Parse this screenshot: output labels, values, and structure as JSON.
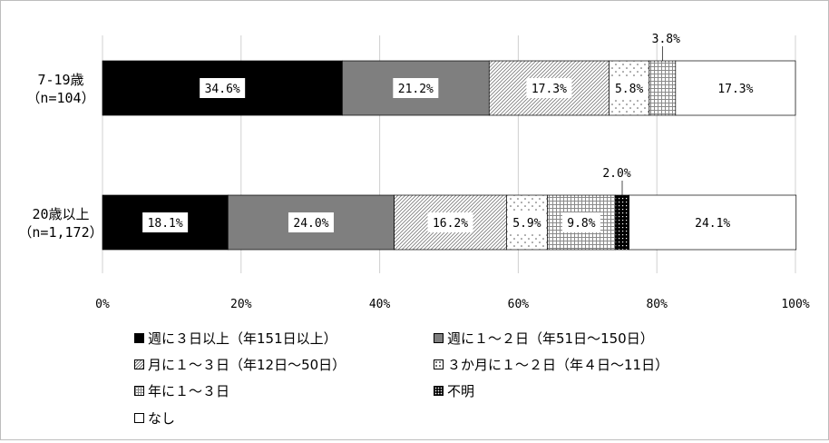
{
  "chart_data": {
    "type": "bar",
    "orientation": "horizontal",
    "stacked": true,
    "xlim": [
      0,
      100
    ],
    "xticks": [
      "0%",
      "20%",
      "40%",
      "60%",
      "80%",
      "100%"
    ],
    "categories": [
      {
        "line1": "7-19歳",
        "line2": "（n=104）"
      },
      {
        "line1": "20歳以上",
        "line2": "（n=1,172）"
      }
    ],
    "series": [
      {
        "name": "週に３日以上（年151日以上）",
        "pattern": "solid-black",
        "values": [
          34.6,
          18.1
        ],
        "labels": [
          "34.6%",
          "18.1%"
        ]
      },
      {
        "name": "週に１～２日（年51日～150日）",
        "pattern": "solid-gray",
        "values": [
          21.2,
          24.0
        ],
        "labels": [
          "21.2%",
          "24.0%"
        ]
      },
      {
        "name": "月に１～３日（年12日～50日）",
        "pattern": "diagonal",
        "values": [
          17.3,
          16.2
        ],
        "labels": [
          "17.3%",
          "16.2%"
        ]
      },
      {
        "name": "３か月に１～２日（年４日～11日）",
        "pattern": "dots",
        "values": [
          5.8,
          5.9
        ],
        "labels": [
          "5.8%",
          "5.9%"
        ]
      },
      {
        "name": "年に１～３日",
        "pattern": "grid",
        "values": [
          3.8,
          9.8
        ],
        "labels": [
          "3.8%",
          "9.8%"
        ]
      },
      {
        "name": "不明",
        "pattern": "dense",
        "values": [
          0.0,
          2.0
        ],
        "labels": [
          "",
          "2.0%"
        ]
      },
      {
        "name": "なし",
        "pattern": "white",
        "values": [
          17.3,
          24.1
        ],
        "labels": [
          "17.3%",
          "24.1%"
        ]
      }
    ],
    "grid": true,
    "legend_position": "bottom"
  }
}
